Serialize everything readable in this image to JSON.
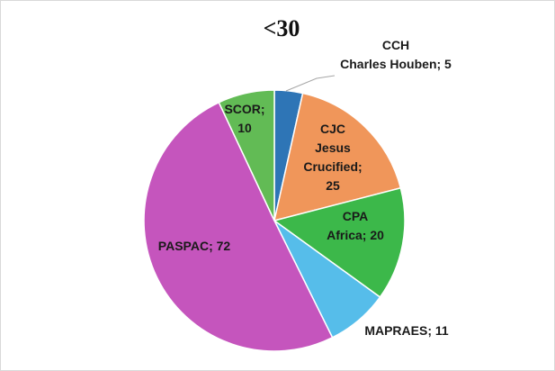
{
  "chart_data": {
    "type": "pie",
    "title": "<30",
    "values": [
      5,
      25,
      20,
      11,
      72,
      10
    ],
    "value_labels": [
      "CCH Charles Houben; 5",
      "CJC Jesus Crucified; 25",
      "CPA Africa; 20",
      "MAPRAES; 11",
      "PASPAC; 72",
      "SCOR; 10"
    ],
    "colors": [
      "#2e75b6",
      "#f0965a",
      "#3cb84a",
      "#56bdea",
      "#c555bd",
      "#62bb55"
    ]
  }
}
